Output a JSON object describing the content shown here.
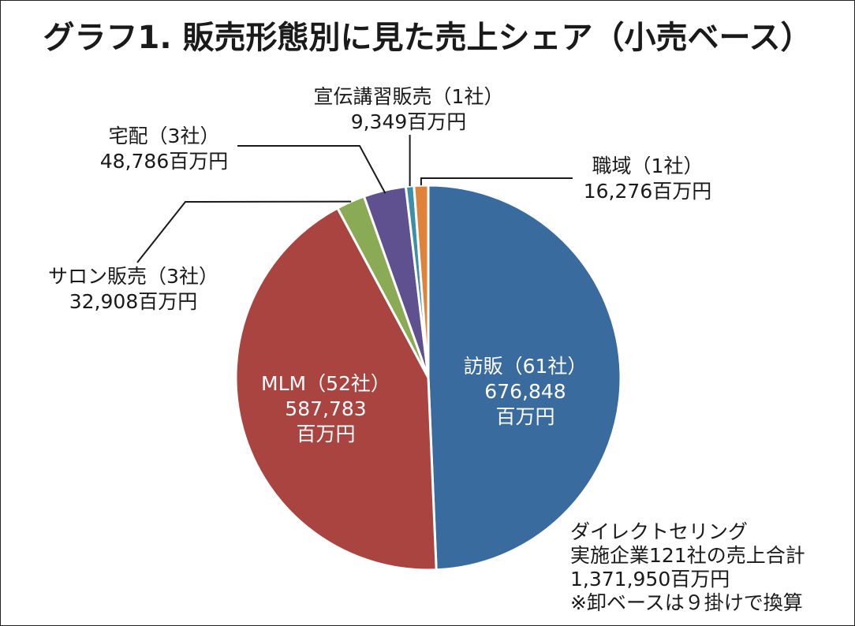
{
  "chart_data": {
    "type": "pie",
    "title": "グラフ1. 販売形態別に見た売上シェア（小売ベース）",
    "unit": "百万円",
    "slices": [
      {
        "name": "訪販（61社）",
        "value": 676848,
        "value_label": "676,848",
        "color": "#3A6B9E",
        "label_position": "inside"
      },
      {
        "name": "MLM（52社）",
        "value": 587783,
        "value_label": "587,783",
        "color": "#A94441",
        "label_position": "inside"
      },
      {
        "name": "サロン販売（3社）",
        "value": 32908,
        "value_label": "32,908百万円",
        "color": "#8AAA55",
        "label_position": "outside-left"
      },
      {
        "name": "宅配（3社）",
        "value": 48786,
        "value_label": "48,786百万円",
        "color": "#5F5090",
        "label_position": "outside-left"
      },
      {
        "name": "宣伝講習販売（1社）",
        "value": 9349,
        "value_label": "9,349百万円",
        "color": "#3B8FA9",
        "label_position": "outside-top"
      },
      {
        "name": "職域（1社）",
        "value": 16276,
        "value_label": "16,276百万円",
        "color": "#E0833A",
        "label_position": "outside-right"
      }
    ],
    "note_lines": [
      "ダイレクトセリング",
      "実施企業121社の売上合計",
      "1,371,950百万円",
      "※卸ベースは９掛けで換算"
    ],
    "legend": "none"
  }
}
